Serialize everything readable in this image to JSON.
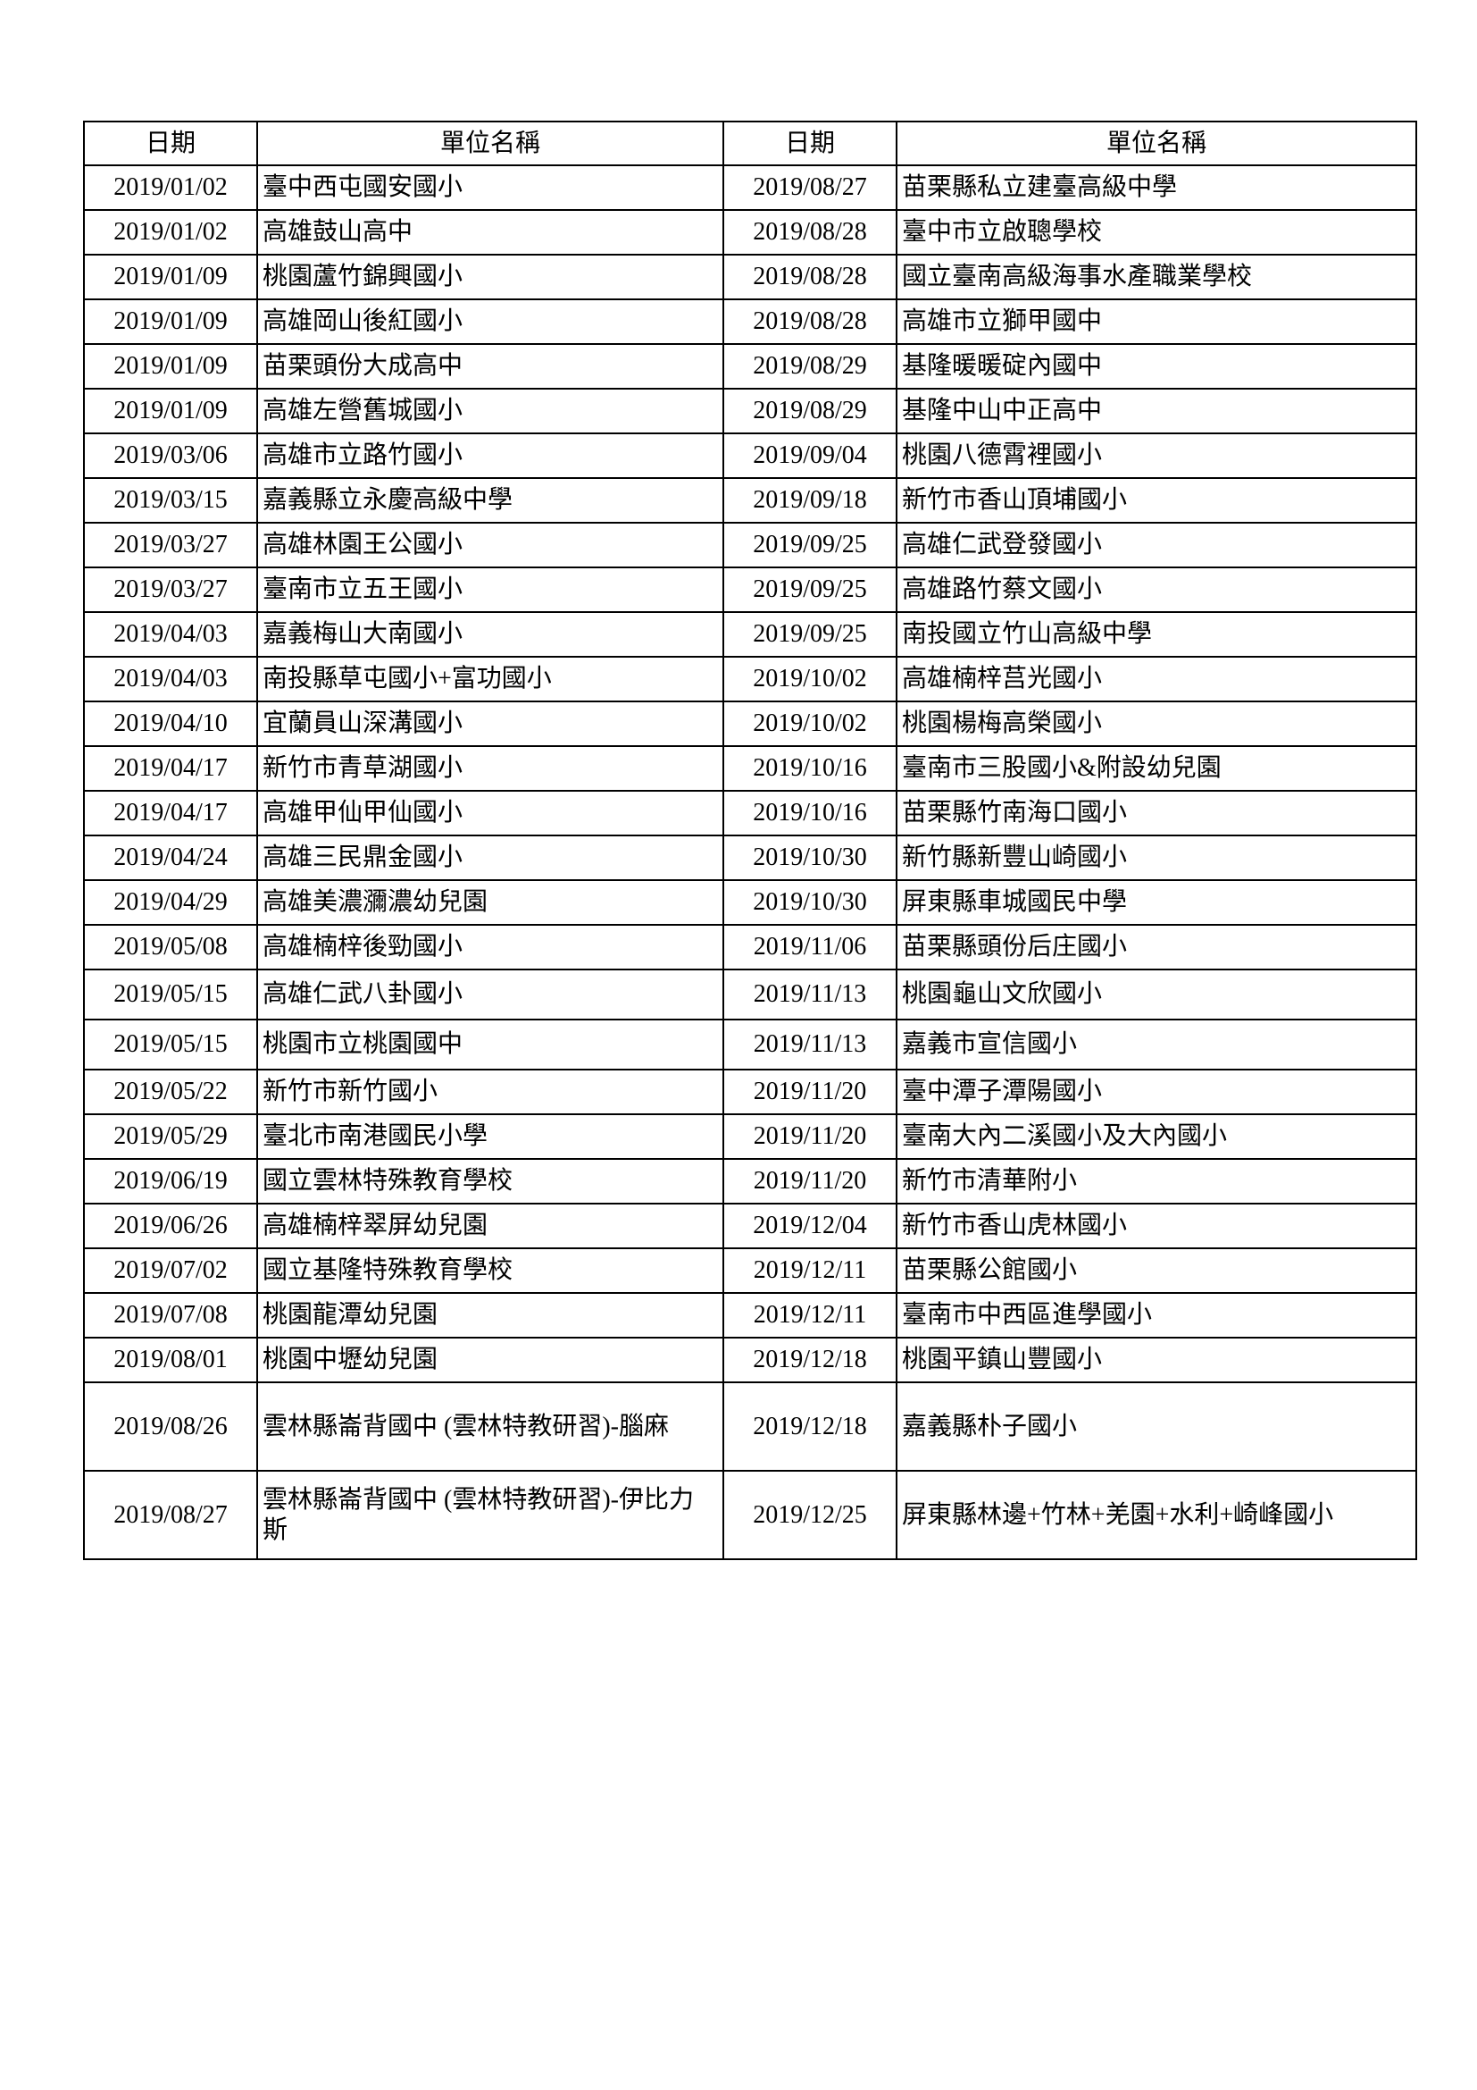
{
  "headers": [
    "日期",
    "單位名稱",
    "日期",
    "單位名稱"
  ],
  "rows": [
    {
      "d1": "2019/01/02",
      "n1": "臺中西屯國安國小",
      "d2": "2019/08/27",
      "n2": "苗栗縣私立建臺高級中學"
    },
    {
      "d1": "2019/01/02",
      "n1": "高雄鼓山高中",
      "d2": "2019/08/28",
      "n2": "臺中市立啟聰學校"
    },
    {
      "d1": "2019/01/09",
      "n1": "桃園蘆竹錦興國小",
      "d2": "2019/08/28",
      "n2": "國立臺南高級海事水產職業學校"
    },
    {
      "d1": "2019/01/09",
      "n1": "高雄岡山後紅國小",
      "d2": "2019/08/28",
      "n2": "高雄市立獅甲國中"
    },
    {
      "d1": "2019/01/09",
      "n1": "苗栗頭份大成高中",
      "d2": "2019/08/29",
      "n2": "基隆暖暖碇內國中"
    },
    {
      "d1": "2019/01/09",
      "n1": "高雄左營舊城國小",
      "d2": "2019/08/29",
      "n2": "基隆中山中正高中"
    },
    {
      "d1": "2019/03/06",
      "n1": "高雄市立路竹國小",
      "d2": "2019/09/04",
      "n2": "桃園八德霄裡國小"
    },
    {
      "d1": "2019/03/15",
      "n1": "嘉義縣立永慶高級中學",
      "d2": "2019/09/18",
      "n2": "新竹市香山頂埔國小"
    },
    {
      "d1": "2019/03/27",
      "n1": "高雄林園王公國小",
      "d2": "2019/09/25",
      "n2": "高雄仁武登發國小"
    },
    {
      "d1": "2019/03/27",
      "n1": "臺南市立五王國小",
      "d2": "2019/09/25",
      "n2": "高雄路竹蔡文國小"
    },
    {
      "d1": "2019/04/03",
      "n1": "嘉義梅山大南國小",
      "d2": "2019/09/25",
      "n2": "南投國立竹山高級中學"
    },
    {
      "d1": "2019/04/03",
      "n1": "南投縣草屯國小+富功國小",
      "d2": "2019/10/02",
      "n2": "高雄楠梓莒光國小"
    },
    {
      "d1": "2019/04/10",
      "n1": "宜蘭員山深溝國小",
      "d2": "2019/10/02",
      "n2": "桃園楊梅高榮國小"
    },
    {
      "d1": "2019/04/17",
      "n1": "新竹市青草湖國小",
      "d2": "2019/10/16",
      "n2": "臺南市三股國小&附設幼兒園"
    },
    {
      "d1": "2019/04/17",
      "n1": "高雄甲仙甲仙國小",
      "d2": "2019/10/16",
      "n2": "苗栗縣竹南海口國小"
    },
    {
      "d1": "2019/04/24",
      "n1": "高雄三民鼎金國小",
      "d2": "2019/10/30",
      "n2": "新竹縣新豐山崎國小"
    },
    {
      "d1": "2019/04/29",
      "n1": "高雄美濃瀰濃幼兒園",
      "d2": "2019/10/30",
      "n2": "屏東縣車城國民中學"
    },
    {
      "d1": "2019/05/08",
      "n1": "高雄楠梓後勁國小",
      "d2": "2019/11/06",
      "n2": "苗栗縣頭份后庄國小"
    },
    {
      "d1": "2019/05/15",
      "n1": "高雄仁武八卦國小",
      "d2": "2019/11/13",
      "n2": "桃園龜山文欣國小"
    },
    {
      "d1": "2019/05/15",
      "n1": "桃園市立桃園國中",
      "d2": "2019/11/13",
      "n2": "嘉義市宣信國小"
    },
    {
      "d1": "2019/05/22",
      "n1": "新竹市新竹國小",
      "d2": "2019/11/20",
      "n2": "臺中潭子潭陽國小"
    },
    {
      "d1": "2019/05/29",
      "n1": "臺北市南港國民小學",
      "d2": "2019/11/20",
      "n2": "臺南大內二溪國小及大內國小"
    },
    {
      "d1": "2019/06/19",
      "n1": "國立雲林特殊教育學校",
      "d2": "2019/11/20",
      "n2": "新竹市清華附小"
    },
    {
      "d1": "2019/06/26",
      "n1": "高雄楠梓翠屏幼兒園",
      "d2": "2019/12/04",
      "n2": "新竹市香山虎林國小"
    },
    {
      "d1": "2019/07/02",
      "n1": "國立基隆特殊教育學校",
      "d2": "2019/12/11",
      "n2": "苗栗縣公館國小"
    },
    {
      "d1": "2019/07/08",
      "n1": "桃園龍潭幼兒園",
      "d2": "2019/12/11",
      "n2": "臺南市中西區進學國小"
    },
    {
      "d1": "2019/08/01",
      "n1": "桃園中壢幼兒園",
      "d2": "2019/12/18",
      "n2": "桃園平鎮山豐國小"
    },
    {
      "d1": "2019/08/26",
      "n1": "雲林縣崙背國中 (雲林特教研習)-腦麻",
      "d2": "2019/12/18",
      "n2": "嘉義縣朴子國小"
    },
    {
      "d1": "2019/08/27",
      "n1": "雲林縣崙背國中 (雲林特教研習)-伊比力斯",
      "d2": "2019/12/25",
      "n2": "屏東縣林邊+竹林+羌園+水利+崎峰國小"
    }
  ]
}
